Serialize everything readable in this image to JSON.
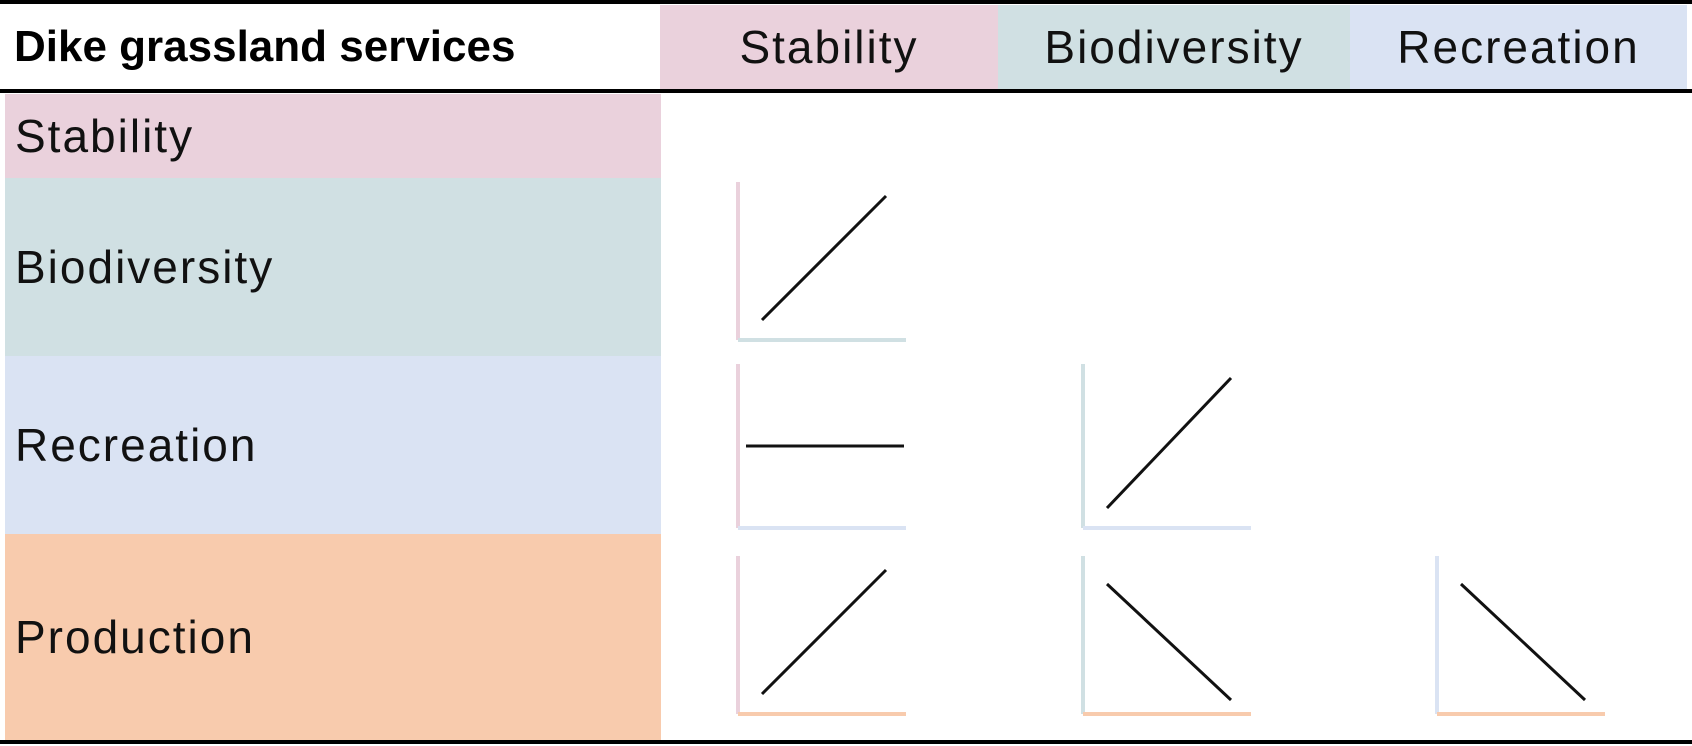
{
  "table": {
    "title": "Dike grassland services",
    "columns": [
      {
        "label": "Stability",
        "color": "#ead1dc"
      },
      {
        "label": "Biodiversity",
        "color": "#d0e0e3"
      },
      {
        "label": "Recreation",
        "color": "#dae3f3"
      }
    ],
    "rows": [
      {
        "label": "Stability",
        "color": "#ead1dc"
      },
      {
        "label": "Biodiversity",
        "color": "#d0e0e3"
      },
      {
        "label": "Recreation",
        "color": "#dae3f3"
      },
      {
        "label": "Production",
        "color": "#f8cbad"
      }
    ]
  },
  "relationships": [
    {
      "row": "Biodiversity",
      "column": "Stability",
      "trend": "increasing"
    },
    {
      "row": "Recreation",
      "column": "Stability",
      "trend": "flat"
    },
    {
      "row": "Recreation",
      "column": "Biodiversity",
      "trend": "increasing"
    },
    {
      "row": "Production",
      "column": "Stability",
      "trend": "increasing"
    },
    {
      "row": "Production",
      "column": "Biodiversity",
      "trend": "decreasing"
    },
    {
      "row": "Production",
      "column": "Recreation",
      "trend": "decreasing"
    }
  ]
}
